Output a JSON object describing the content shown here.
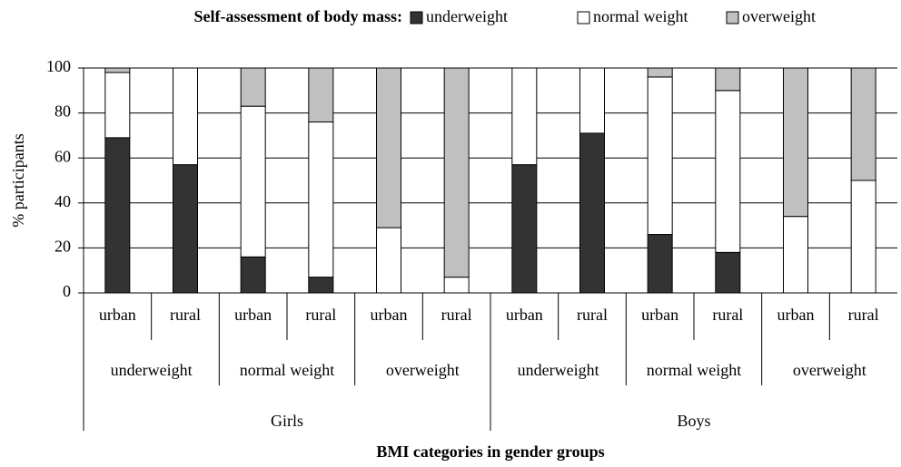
{
  "chart_data": {
    "type": "stacked_bar",
    "legend_title": "Self-assessment of body mass:",
    "x_label": "BMI categories in gender groups",
    "y_label": "% participants",
    "categories": [
      "urban",
      "rural",
      "urban",
      "rural",
      "urban",
      "rural",
      "urban",
      "rural",
      "urban",
      "rural",
      "urban",
      "rural"
    ],
    "category_levels": [
      [
        "underweight",
        "normal weight",
        "overweight",
        "underweight",
        "normal weight",
        "overweight"
      ],
      [
        "Girls",
        "Boys"
      ]
    ],
    "series": [
      {
        "name": "underweight",
        "color": "#333333",
        "values": [
          69,
          57,
          16,
          7,
          0,
          0,
          57,
          71,
          26,
          18,
          0,
          0
        ]
      },
      {
        "name": "normal weight",
        "color": "#ffffff",
        "values": [
          29,
          43,
          67,
          69,
          29,
          7,
          43,
          29,
          70,
          72,
          34,
          50
        ]
      },
      {
        "name": "overweight",
        "color": "#c0c0c0",
        "values": [
          2,
          0,
          17,
          24,
          71,
          93,
          0,
          0,
          4,
          10,
          66,
          50
        ]
      }
    ],
    "ylim": [
      0,
      100
    ],
    "yticks": [
      0,
      20,
      40,
      60,
      80,
      100
    ],
    "grid": true,
    "legend": "top"
  }
}
